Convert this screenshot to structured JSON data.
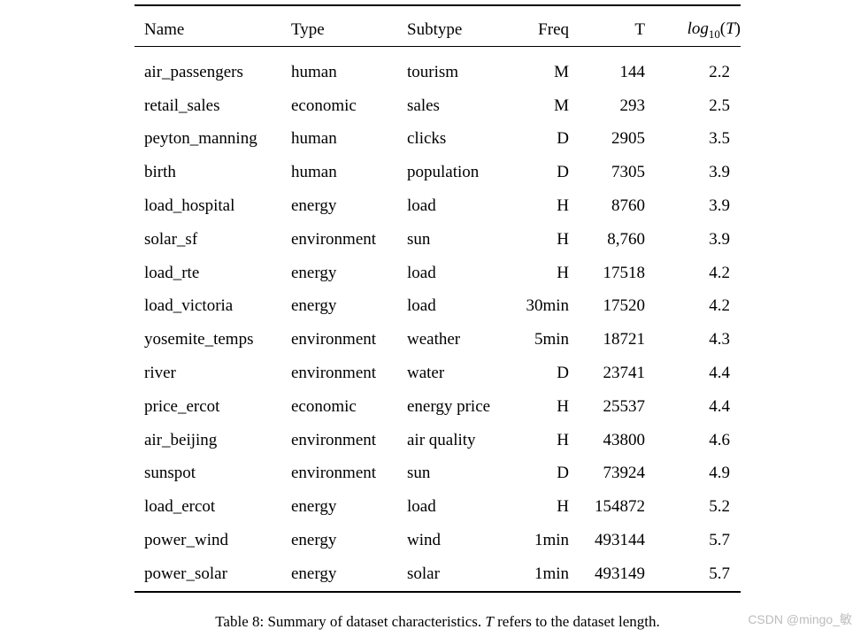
{
  "page": {
    "background": "#ffffff",
    "text_color": "#000000",
    "rule_color": "#000000"
  },
  "table": {
    "columns": [
      {
        "key": "name",
        "label": "Name",
        "align": "left"
      },
      {
        "key": "type",
        "label": "Type",
        "align": "left"
      },
      {
        "key": "subtype",
        "label": "Subtype",
        "align": "left"
      },
      {
        "key": "freq",
        "label": "Freq",
        "align": "right"
      },
      {
        "key": "t",
        "label": "T",
        "align": "right"
      },
      {
        "key": "log10_t",
        "label": "log10(T)",
        "align": "right"
      }
    ],
    "log_header_parts": {
      "log": "log",
      "sub": "10",
      "open": "(",
      "t": "T",
      "close": ")"
    },
    "rows": [
      [
        "air_passengers",
        "human",
        "tourism",
        "M",
        "144",
        "2.2"
      ],
      [
        "retail_sales",
        "economic",
        "sales",
        "M",
        "293",
        "2.5"
      ],
      [
        "peyton_manning",
        "human",
        "clicks",
        "D",
        "2905",
        "3.5"
      ],
      [
        "birth",
        "human",
        "population",
        "D",
        "7305",
        "3.9"
      ],
      [
        "load_hospital",
        "energy",
        "load",
        "H",
        "8760",
        "3.9"
      ],
      [
        "solar_sf",
        "environment",
        "sun",
        "H",
        "8,760",
        "3.9"
      ],
      [
        "load_rte",
        "energy",
        "load",
        "H",
        "17518",
        "4.2"
      ],
      [
        "load_victoria",
        "energy",
        "load",
        "30min",
        "17520",
        "4.2"
      ],
      [
        "yosemite_temps",
        "environment",
        "weather",
        "5min",
        "18721",
        "4.3"
      ],
      [
        "river",
        "environment",
        "water",
        "D",
        "23741",
        "4.4"
      ],
      [
        "price_ercot",
        "economic",
        "energy price",
        "H",
        "25537",
        "4.4"
      ],
      [
        "air_beijing",
        "environment",
        "air quality",
        "H",
        "43800",
        "4.6"
      ],
      [
        "sunspot",
        "environment",
        "sun",
        "D",
        "73924",
        "4.9"
      ],
      [
        "load_ercot",
        "energy",
        "load",
        "H",
        "154872",
        "5.2"
      ],
      [
        "power_wind",
        "energy",
        "wind",
        "1min",
        "493144",
        "5.7"
      ],
      [
        "power_solar",
        "energy",
        "solar",
        "1min",
        "493149",
        "5.7"
      ]
    ]
  },
  "caption": {
    "prefix": "Table 8: Summary of dataset characteristics. ",
    "italic_t": "T",
    "suffix": " refers to the dataset length."
  },
  "watermark": {
    "text": "CSDN @mingo_敏",
    "color": "#bcbcbc"
  }
}
